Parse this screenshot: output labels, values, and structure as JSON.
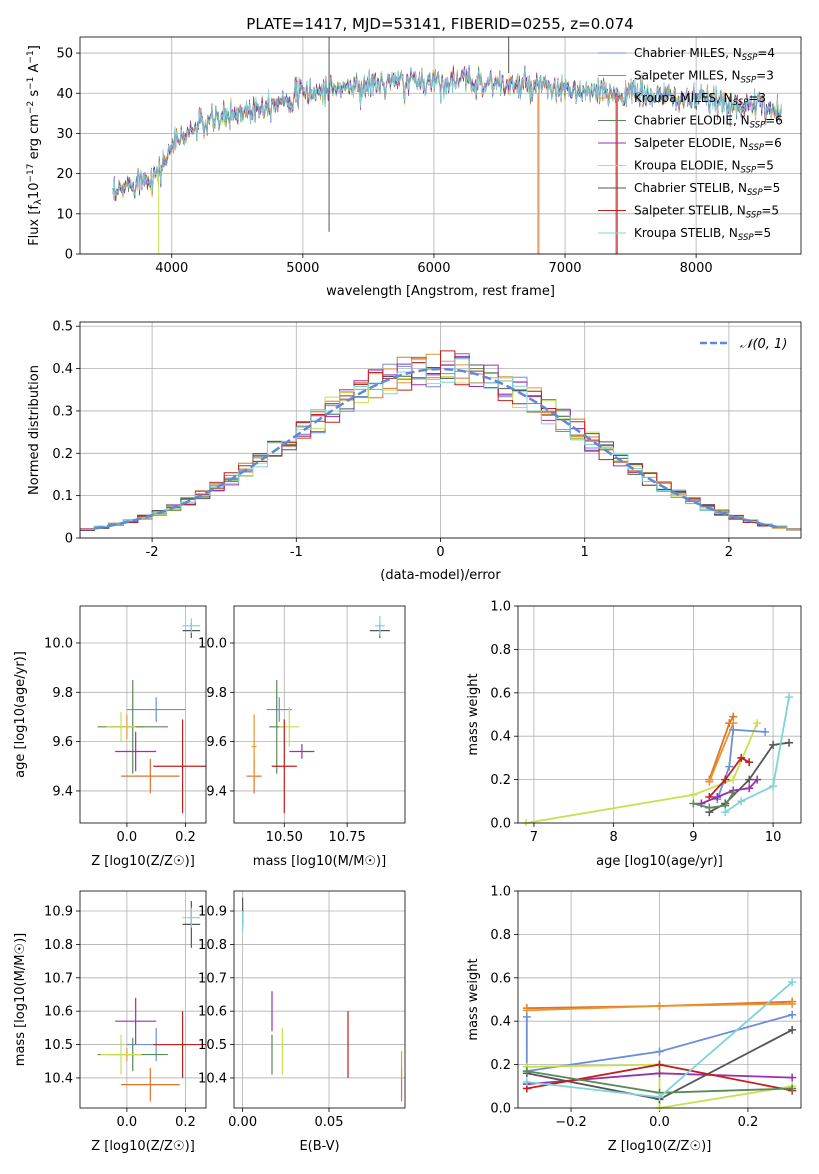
{
  "page_title": "PLATE=1417, MJD=53141, FIBERID=0255, z=0.074",
  "colors": {
    "Chabrier MILES": "#6d8fd8",
    "Salpeter MILES": "#e0722a",
    "Kroupa MILES": "#e8962e",
    "Chabrier ELODIE": "#5a8a5a",
    "Salpeter ELODIE": "#9b2fb0",
    "Kroupa ELODIE": "#c8e050",
    "Chabrier STELIB": "#555555",
    "Salpeter STELIB": "#c0201e",
    "Kroupa STELIB": "#7ed4d8"
  },
  "chart_data": [
    {
      "id": "spectrum",
      "type": "line",
      "title": "PLATE=1417, MJD=53141, FIBERID=0255, z=0.074",
      "xlabel": "wavelength [Angstrom, rest frame]",
      "ylabel": "Flux [f_λ 10^-17 erg cm^-2 s^-1 A^-1]",
      "xlim": [
        3300,
        8800
      ],
      "ylim": [
        0,
        54
      ],
      "xticks": [
        4000,
        5000,
        6000,
        7000,
        8000
      ],
      "yticks": [
        0,
        10,
        20,
        30,
        40,
        50
      ],
      "legend_placement": "top-right",
      "legend": [
        {
          "label": "Chabrier MILES, N",
          "sub": "SSP",
          "suffix": "=4"
        },
        {
          "label": "Salpeter MILES, N",
          "sub": "SSP",
          "suffix": "=3"
        },
        {
          "label": "Kroupa MILES, N",
          "sub": "SSP",
          "suffix": "=3"
        },
        {
          "label": "Chabrier ELODIE, N",
          "sub": "SSP",
          "suffix": "=6"
        },
        {
          "label": "Salpeter ELODIE, N",
          "sub": "SSP",
          "suffix": "=6"
        },
        {
          "label": "Kroupa ELODIE, N",
          "sub": "SSP",
          "suffix": "=5"
        },
        {
          "label": "Chabrier STELIB, N",
          "sub": "SSP",
          "suffix": "=5"
        },
        {
          "label": "Salpeter STELIB, N",
          "sub": "SSP",
          "suffix": "=5"
        },
        {
          "label": "Kroupa STELIB, N",
          "sub": "SSP",
          "suffix": "=5"
        }
      ],
      "continuum": {
        "x": [
          3550,
          3700,
          3900,
          4000,
          4200,
          4500,
          4800,
          5000,
          5200,
          5500,
          5800,
          6000,
          6300,
          6600,
          6900,
          7200,
          7500,
          7800,
          8100,
          8400,
          8650
        ],
        "y": [
          14,
          18,
          20,
          27,
          32,
          35,
          38,
          40,
          41,
          42,
          43,
          43,
          43,
          42,
          41,
          40,
          40,
          39,
          38,
          37,
          36
        ]
      },
      "grid": true
    },
    {
      "id": "residuals",
      "type": "histogram",
      "xlabel": "(data-model)/error",
      "ylabel": "Normed distribution",
      "xlim": [
        -2.5,
        2.5
      ],
      "ylim": [
        0,
        0.51
      ],
      "xticks": [
        -2,
        -1,
        0,
        1,
        2
      ],
      "yticks": [
        0.0,
        0.1,
        0.2,
        0.3,
        0.4,
        0.5
      ],
      "legend": "𝒩(0, 1)",
      "legend_placement": "top-right",
      "bin_width": 0.1,
      "gaussian": {
        "mean": 0,
        "sigma": 1
      },
      "grid": true
    },
    {
      "id": "age-vs-Z",
      "type": "errorbar",
      "xlabel": "Z [log10(Z/Z☉)]",
      "ylabel": "age [log10(age/yr)]",
      "xlim": [
        -0.16,
        0.27
      ],
      "ylim": [
        9.27,
        10.15
      ],
      "xticks": [
        "0.0",
        "0.2"
      ],
      "yticks": [
        "9.4",
        "9.6",
        "9.8",
        "10.0"
      ],
      "points": [
        {
          "model": "Chabrier MILES",
          "x": 0.1,
          "y": 9.73,
          "xerr": 0.1,
          "yerr": 0.05
        },
        {
          "model": "Salpeter MILES",
          "x": 0.08,
          "y": 9.46,
          "xerr": 0.1,
          "yerr": 0.07
        },
        {
          "model": "Kroupa MILES",
          "x": 0.0,
          "y": 9.66,
          "xerr": 0.06,
          "yerr": 0.05
        },
        {
          "model": "Chabrier ELODIE",
          "x": 0.02,
          "y": 9.66,
          "xerr": 0.12,
          "yerr": 0.19
        },
        {
          "model": "Salpeter ELODIE",
          "x": 0.03,
          "y": 9.56,
          "xerr": 0.07,
          "yerr": 0.08
        },
        {
          "model": "Kroupa ELODIE",
          "x": -0.02,
          "y": 9.66,
          "xerr": 0.05,
          "yerr": 0.06
        },
        {
          "model": "Chabrier STELIB",
          "x": 0.22,
          "y": 10.05,
          "xerr": 0.03,
          "yerr": 0.03
        },
        {
          "model": "Salpeter STELIB",
          "x": 0.19,
          "y": 9.5,
          "xerr": 0.1,
          "yerr": 0.19
        },
        {
          "model": "Kroupa STELIB",
          "x": 0.22,
          "y": 10.07,
          "xerr": 0.03,
          "yerr": 0.03
        }
      ],
      "grid": true
    },
    {
      "id": "age-vs-mass",
      "type": "errorbar",
      "xlabel": "mass [log10(M/M☉)]",
      "ylabel": "",
      "xlim": [
        10.3,
        10.98
      ],
      "ylim": [
        9.27,
        10.15
      ],
      "xticks": [
        "10.50",
        "10.75"
      ],
      "yticks": [
        "9.4",
        "9.6",
        "9.8",
        "10.0"
      ],
      "points": [
        {
          "model": "Chabrier MILES",
          "x": 10.48,
          "y": 9.73,
          "xerr": 0.05,
          "yerr": 0.05
        },
        {
          "model": "Salpeter MILES",
          "x": 10.38,
          "y": 9.46,
          "xerr": 0.03,
          "yerr": 0.07
        },
        {
          "model": "Kroupa MILES",
          "x": 10.38,
          "y": 9.58,
          "xerr": 0.01,
          "yerr": 0.13
        },
        {
          "model": "Chabrier ELODIE",
          "x": 10.47,
          "y": 9.66,
          "xerr": 0.03,
          "yerr": 0.19
        },
        {
          "model": "Salpeter ELODIE",
          "x": 10.57,
          "y": 9.56,
          "xerr": 0.05,
          "yerr": 0.03
        },
        {
          "model": "Kroupa ELODIE",
          "x": 10.52,
          "y": 9.66,
          "xerr": 0.04,
          "yerr": 0.08
        },
        {
          "model": "Chabrier STELIB",
          "x": 10.88,
          "y": 10.05,
          "xerr": 0.04,
          "yerr": 0.03
        },
        {
          "model": "Salpeter STELIB",
          "x": 10.5,
          "y": 9.5,
          "xerr": 0.05,
          "yerr": 0.19
        },
        {
          "model": "Kroupa STELIB",
          "x": 10.88,
          "y": 10.07,
          "xerr": 0.02,
          "yerr": 0.04
        }
      ],
      "grid": true
    },
    {
      "id": "weight-vs-age",
      "type": "line",
      "xlabel": "age [log10(age/yr)]",
      "ylabel": "mass weight",
      "xlim": [
        6.8,
        10.35
      ],
      "ylim": [
        0,
        1.0
      ],
      "xticks": [
        "7",
        "8",
        "9",
        "10"
      ],
      "yticks": [
        "0.0",
        "0.2",
        "0.4",
        "0.6",
        "0.8",
        "1.0"
      ],
      "series": [
        {
          "model": "Kroupa ELODIE",
          "x": [
            6.9,
            9.0,
            9.5,
            9.8
          ],
          "y": [
            0.0,
            0.13,
            0.2,
            0.46
          ]
        },
        {
          "model": "Salpeter MILES",
          "x": [
            9.2,
            9.45,
            9.5
          ],
          "y": [
            0.2,
            0.46,
            0.49
          ]
        },
        {
          "model": "Kroupa MILES",
          "x": [
            9.2,
            9.5
          ],
          "y": [
            0.19,
            0.46
          ]
        },
        {
          "model": "Chabrier MILES",
          "x": [
            9.3,
            9.45,
            9.5,
            9.9
          ],
          "y": [
            0.11,
            0.26,
            0.43,
            0.42
          ]
        },
        {
          "model": "Salpeter STELIB",
          "x": [
            9.2,
            9.4,
            9.6,
            9.7
          ],
          "y": [
            0.12,
            0.2,
            0.3,
            0.28
          ]
        },
        {
          "model": "Chabrier STELIB",
          "x": [
            9.2,
            9.4,
            9.7,
            10.0,
            10.2
          ],
          "y": [
            0.05,
            0.09,
            0.2,
            0.36,
            0.37
          ]
        },
        {
          "model": "Salpeter ELODIE",
          "x": [
            9.1,
            9.3,
            9.5,
            9.7,
            9.8
          ],
          "y": [
            0.09,
            0.12,
            0.15,
            0.16,
            0.2
          ]
        },
        {
          "model": "Chabrier ELODIE",
          "x": [
            9.0,
            9.2,
            9.4,
            9.5
          ],
          "y": [
            0.09,
            0.07,
            0.08,
            0.14
          ]
        },
        {
          "model": "Kroupa STELIB",
          "x": [
            9.4,
            9.6,
            10.0,
            10.2
          ],
          "y": [
            0.05,
            0.1,
            0.17,
            0.58
          ]
        }
      ],
      "grid": true
    },
    {
      "id": "mass-vs-Z",
      "type": "errorbar",
      "xlabel": "Z [log10(Z/Z☉)]",
      "ylabel": "mass [log10(M/M☉)]",
      "xlim": [
        -0.16,
        0.27
      ],
      "ylim": [
        10.31,
        10.96
      ],
      "xticks": [
        "0.0",
        "0.2"
      ],
      "yticks": [
        "10.4",
        "10.5",
        "10.6",
        "10.7",
        "10.8",
        "10.9"
      ],
      "points": [
        {
          "model": "Chabrier MILES",
          "x": 0.1,
          "y": 10.5,
          "xerr": 0.1,
          "yerr": 0.05
        },
        {
          "model": "Salpeter MILES",
          "x": 0.08,
          "y": 10.38,
          "xerr": 0.1,
          "yerr": 0.05
        },
        {
          "model": "Kroupa MILES",
          "x": 0.0,
          "y": 10.47,
          "xerr": 0.06,
          "yerr": 0.02
        },
        {
          "model": "Chabrier ELODIE",
          "x": 0.02,
          "y": 10.47,
          "xerr": 0.12,
          "yerr": 0.05
        },
        {
          "model": "Salpeter ELODIE",
          "x": 0.03,
          "y": 10.57,
          "xerr": 0.07,
          "yerr": 0.07
        },
        {
          "model": "Kroupa ELODIE",
          "x": -0.02,
          "y": 10.47,
          "xerr": 0.07,
          "yerr": 0.06
        },
        {
          "model": "Chabrier STELIB",
          "x": 0.22,
          "y": 10.86,
          "xerr": 0.03,
          "yerr": 0.07
        },
        {
          "model": "Salpeter STELIB",
          "x": 0.19,
          "y": 10.5,
          "xerr": 0.1,
          "yerr": 0.1
        },
        {
          "model": "Kroupa STELIB",
          "x": 0.22,
          "y": 10.88,
          "xerr": 0.03,
          "yerr": 0.03
        }
      ],
      "grid": true
    },
    {
      "id": "mass-vs-ebv",
      "type": "errorbar",
      "xlabel": "E(B-V)",
      "ylabel": "",
      "xlim": [
        -0.005,
        0.094
      ],
      "ylim": [
        10.31,
        10.96
      ],
      "xticks": [
        "0.00",
        "0.05"
      ],
      "yticks": [
        "10.4",
        "10.5",
        "10.6",
        "10.7",
        "10.8",
        "10.9"
      ],
      "points": [
        {
          "model": "Chabrier MILES",
          "x": 0.0,
          "y": 10.88,
          "xerr": 0,
          "yerr": 0.03
        },
        {
          "model": "Salpeter MILES",
          "x": 0.092,
          "y": 10.38,
          "xerr": 0,
          "yerr": 0.05
        },
        {
          "model": "Kroupa MILES",
          "x": 0.092,
          "y": 10.44,
          "xerr": 0,
          "yerr": 0.04
        },
        {
          "model": "Chabrier ELODIE",
          "x": 0.017,
          "y": 10.47,
          "xerr": 0,
          "yerr": 0.06
        },
        {
          "model": "Salpeter ELODIE",
          "x": 0.017,
          "y": 10.6,
          "xerr": 0,
          "yerr": 0.06
        },
        {
          "model": "Kroupa ELODIE",
          "x": 0.023,
          "y": 10.48,
          "xerr": 0,
          "yerr": 0.07
        },
        {
          "model": "Chabrier STELIB",
          "x": 0.0,
          "y": 10.9,
          "xerr": 0,
          "yerr": 0.04
        },
        {
          "model": "Salpeter STELIB",
          "x": 0.061,
          "y": 10.5,
          "xerr": 0,
          "yerr": 0.1
        },
        {
          "model": "Kroupa STELIB",
          "x": 0.0,
          "y": 10.87,
          "xerr": 0,
          "yerr": 0.03
        }
      ],
      "grid": true
    },
    {
      "id": "weight-vs-Z",
      "type": "line",
      "xlabel": "Z [log10(Z/Z☉)]",
      "ylabel": "mass weight",
      "xlim": [
        -0.32,
        0.32
      ],
      "ylim": [
        0,
        1.0
      ],
      "xticks": [
        "−0.2",
        "0.0",
        "0.2"
      ],
      "yticks": [
        "0.0",
        "0.2",
        "0.4",
        "0.6",
        "0.8",
        "1.0"
      ],
      "series": [
        {
          "model": "Salpeter MILES",
          "x": [
            -0.3,
            0.0,
            0.3
          ],
          "y": [
            0.46,
            0.47,
            0.49
          ]
        },
        {
          "model": "Kroupa MILES",
          "x": [
            -0.3,
            0.0,
            0.3
          ],
          "y": [
            0.45,
            0.47,
            0.48
          ]
        },
        {
          "model": "Chabrier MILES",
          "x": [
            -0.3,
            -0.3,
            0.0,
            0.3
          ],
          "y": [
            0.42,
            0.17,
            0.26,
            0.43
          ]
        },
        {
          "model": "Kroupa ELODIE",
          "x": [
            -0.3,
            0.0,
            0.0,
            0.3
          ],
          "y": [
            0.19,
            0.2,
            0.0,
            0.1
          ]
        },
        {
          "model": "Salpeter ELODIE",
          "x": [
            -0.3,
            0.0,
            0.3
          ],
          "y": [
            0.11,
            0.16,
            0.14
          ]
        },
        {
          "model": "Chabrier STELIB",
          "x": [
            -0.3,
            0.0,
            0.3
          ],
          "y": [
            0.16,
            0.04,
            0.36
          ]
        },
        {
          "model": "Salpeter STELIB",
          "x": [
            -0.3,
            0.0,
            0.3
          ],
          "y": [
            0.09,
            0.2,
            0.08
          ]
        },
        {
          "model": "Chabrier ELODIE",
          "x": [
            -0.3,
            0.0,
            0.3
          ],
          "y": [
            0.17,
            0.07,
            0.09
          ]
        },
        {
          "model": "Kroupa STELIB",
          "x": [
            -0.3,
            0.0,
            0.3
          ],
          "y": [
            0.12,
            0.05,
            0.58
          ]
        }
      ],
      "grid": true
    }
  ]
}
